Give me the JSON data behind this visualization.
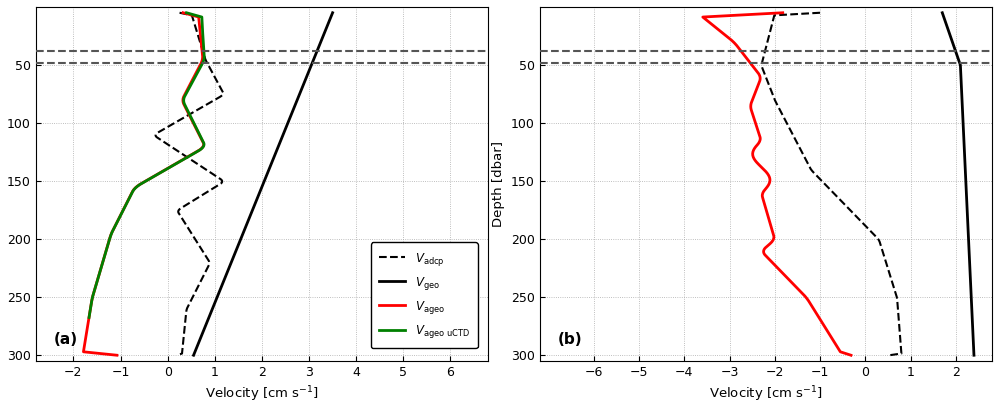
{
  "fig_width": 9.99,
  "fig_height": 4.11,
  "dpi": 100,
  "background_color": "#ffffff",
  "panel_a": {
    "xlim": [
      -2.8,
      6.8
    ],
    "ylim": [
      305,
      0
    ],
    "xticks": [
      -2,
      -1,
      0,
      1,
      2,
      3,
      4,
      5,
      6
    ],
    "yticks": [
      50,
      100,
      150,
      200,
      250,
      300
    ],
    "xlabel": "Velocity [cm s$^{-1}$]",
    "ylabel": "",
    "label": "(a)",
    "hlines": [
      38,
      48
    ],
    "hline_style": "--",
    "hline_color": "#555555",
    "hline_lw": 1.5
  },
  "panel_b": {
    "xlim": [
      -7.2,
      2.8
    ],
    "ylim": [
      305,
      0
    ],
    "xticks": [
      -6,
      -5,
      -4,
      -3,
      -2,
      -1,
      0,
      1,
      2
    ],
    "yticks": [
      50,
      100,
      150,
      200,
      250,
      300
    ],
    "xlabel": "Velocity [cm s$^{-1}$]",
    "ylabel": "Depth [dbar]",
    "label": "(b)",
    "hlines": [
      38,
      48
    ],
    "hline_style": "--",
    "hline_color": "#555555",
    "hline_lw": 1.5
  }
}
